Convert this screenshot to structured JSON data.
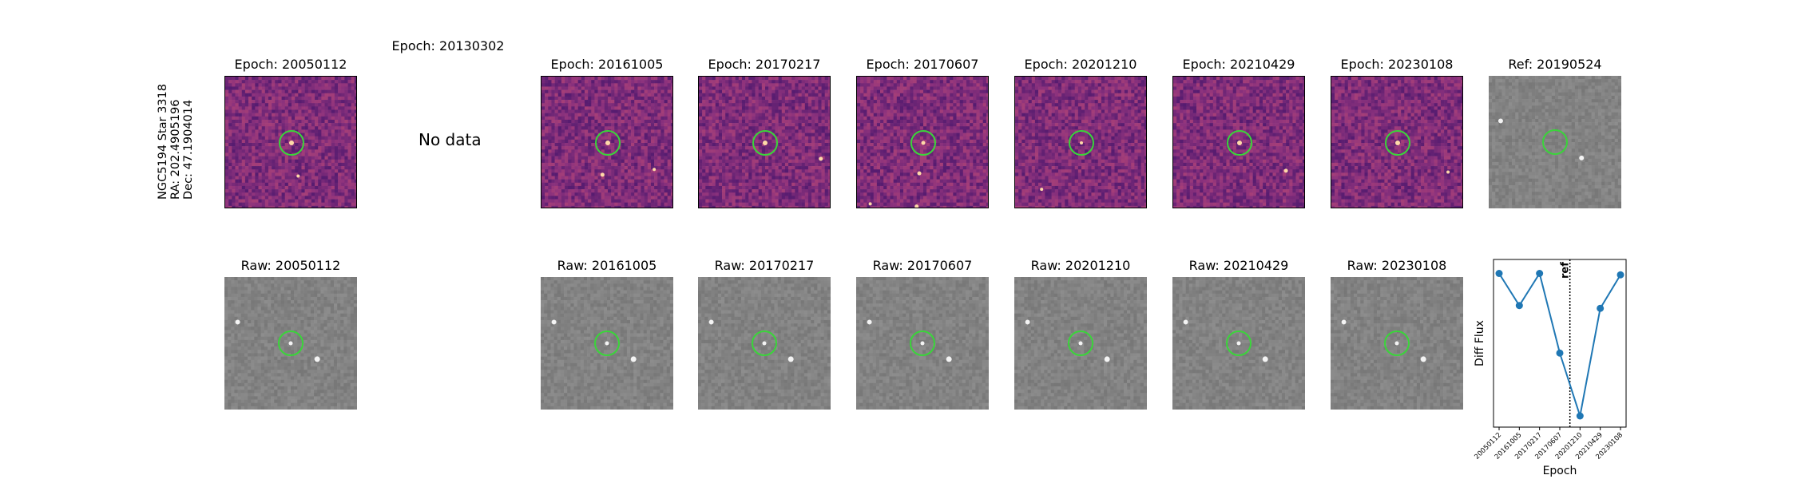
{
  "target_label": {
    "name": "NGC5194 Star 3318",
    "ra": "RA: 202.4905196",
    "dec": "Dec: 47.1904014"
  },
  "diff_titles": [
    "Epoch: 20050112",
    "Epoch: 20130302",
    "Epoch: 20161005",
    "Epoch: 20170217",
    "Epoch: 20170607",
    "Epoch: 20201210",
    "Epoch: 20210429",
    "Epoch: 20230108",
    "Ref: 20190524"
  ],
  "raw_titles": [
    "Raw: 20050112",
    "Raw: 20161005",
    "Raw: 20170217",
    "Raw: 20170607",
    "Raw: 20201210",
    "Raw: 20210429",
    "Raw: 20230108"
  ],
  "no_data_text": "No data",
  "colors": {
    "marker_circle": "#3ad53a",
    "line": "#1f77b4",
    "diff_base": "#9b3f86",
    "raw_base": "#8a8a8a"
  },
  "chart_data": {
    "type": "line",
    "title": "",
    "xlabel": "Epoch",
    "ylabel": "Diff Flux",
    "categories": [
      "20050112",
      "20161005",
      "20170217",
      "20170607",
      "20201210",
      "20210429",
      "20230108"
    ],
    "values": [
      0.95,
      0.72,
      0.95,
      0.38,
      -0.07,
      0.7,
      0.94
    ],
    "ylim": [
      -0.15,
      1.05
    ],
    "ref_line": {
      "label": "ref",
      "position_between": [
        "20170607",
        "20201210"
      ],
      "style": "dotted"
    },
    "grid": false
  }
}
